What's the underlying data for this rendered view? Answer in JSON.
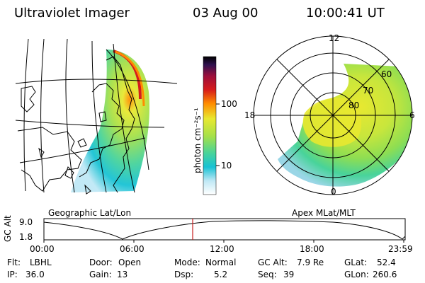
{
  "header": {
    "instrument": "Ultraviolet Imager",
    "date": "03 Aug 00",
    "time": "10:00:41 UT"
  },
  "colorbar": {
    "unit_label": "photon cm⁻²s⁻¹",
    "ticks": [
      "100",
      "10"
    ],
    "scale": "log",
    "colors": [
      "#ffffff",
      "#bfe8f5",
      "#18c2d4",
      "#48d39a",
      "#a4e04a",
      "#e8e830",
      "#ff8c00",
      "#d61c1c",
      "#9c0f3c",
      "#30114f",
      "#000000"
    ]
  },
  "panels": {
    "left_label": "Geographic Lat/Lon",
    "right_label": "Apex MLat/MLT",
    "polar_labels": {
      "top": "12",
      "left": "18",
      "right": "6",
      "bottom": "0"
    },
    "latitude_rings": [
      "60",
      "70",
      "80"
    ]
  },
  "altitude_plot": {
    "ylabel": "GC Alt",
    "yticks": [
      "9.0",
      "1.8"
    ],
    "xticks": [
      "00:00",
      "06:00",
      "12:00",
      "18:00",
      "23:59"
    ],
    "current_time_marker": "10:00:41",
    "marker_color": "#c81e1e"
  },
  "info": {
    "flt_label": "Flt:",
    "flt_value": "LBHL",
    "ip_label": "IP:",
    "ip_value": "36.0",
    "door_label": "Door:",
    "door_value": "Open",
    "gain_label": "Gain:",
    "gain_value": "13",
    "mode_label": "Mode:",
    "mode_value": "Normal",
    "dsp_label": "Dsp:",
    "dsp_value": "5.2",
    "gcalt_label": "GC Alt:",
    "gcalt_value": "7.9 Re",
    "seq_label": "Seq:",
    "seq_value": "39",
    "glat_label": "GLat:",
    "glat_value": "52.4",
    "glon_label": "GLon:",
    "glon_value": "260.6"
  }
}
